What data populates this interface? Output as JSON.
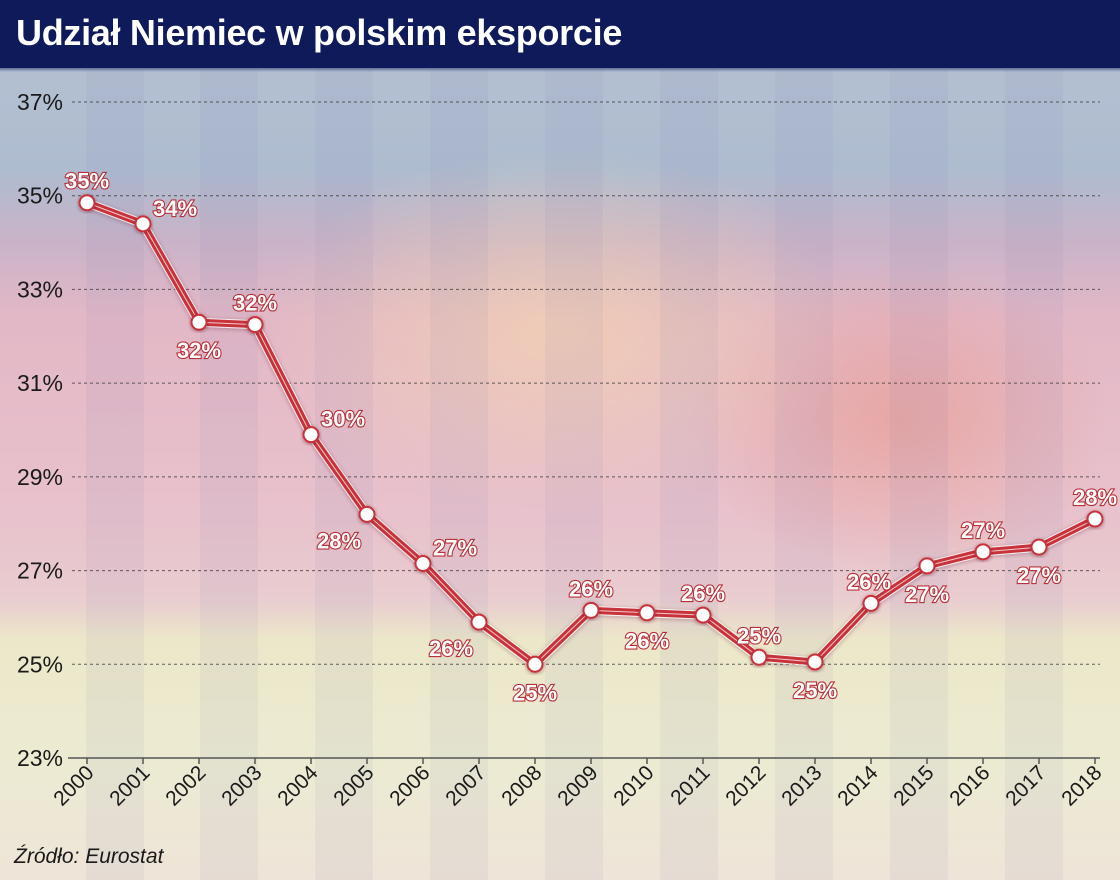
{
  "header": {
    "title": "Udział Niemiec w polskim eksporcie"
  },
  "footer": {
    "source": "Źródło: Eurostat"
  },
  "colors": {
    "header_bg": "#0e1a5a",
    "line": "#c8333b",
    "marker_fill": "#ffffff",
    "label_fill": "#ffffff",
    "label_stroke": "#b8323a"
  },
  "chart_data": {
    "type": "line",
    "title": "Udział Niemiec w polskim eksporcie",
    "xlabel": "",
    "ylabel": "",
    "x": [
      "2000",
      "2001",
      "2002",
      "2003",
      "2004",
      "2005",
      "2006",
      "2007",
      "2008",
      "2009",
      "2010",
      "2011",
      "2012",
      "2013",
      "2014",
      "2015",
      "2016",
      "2017",
      "2018"
    ],
    "series": [
      {
        "name": "Udział Niemiec w polskim eksporcie",
        "values": [
          34.85,
          34.4,
          32.3,
          32.25,
          29.9,
          28.2,
          27.15,
          25.9,
          25.0,
          26.15,
          26.1,
          26.05,
          25.15,
          25.05,
          26.3,
          27.1,
          27.4,
          27.5,
          28.1
        ],
        "labels": [
          "35%",
          "34%",
          "32%",
          "32%",
          "30%",
          "28%",
          "27%",
          "26%",
          "25%",
          "26%",
          "26%",
          "26%",
          "25%",
          "25%",
          "26%",
          "27%",
          "27%",
          "27%",
          "28%"
        ],
        "label_positions": [
          "above",
          "above-right",
          "below",
          "above",
          "above-right",
          "below-left",
          "above-right",
          "below-left",
          "below",
          "above",
          "below",
          "above",
          "above",
          "below",
          "above-left",
          "below",
          "above",
          "below",
          "above"
        ]
      }
    ],
    "yticks": [
      "23%",
      "25%",
      "27%",
      "29%",
      "31%",
      "33%",
      "35%",
      "37%"
    ],
    "ytick_values": [
      23,
      25,
      27,
      29,
      31,
      33,
      35,
      37
    ],
    "ylim": [
      23,
      37
    ],
    "grid": "horizontal dashed",
    "legend": "none",
    "source": "Źródło: Eurostat"
  }
}
